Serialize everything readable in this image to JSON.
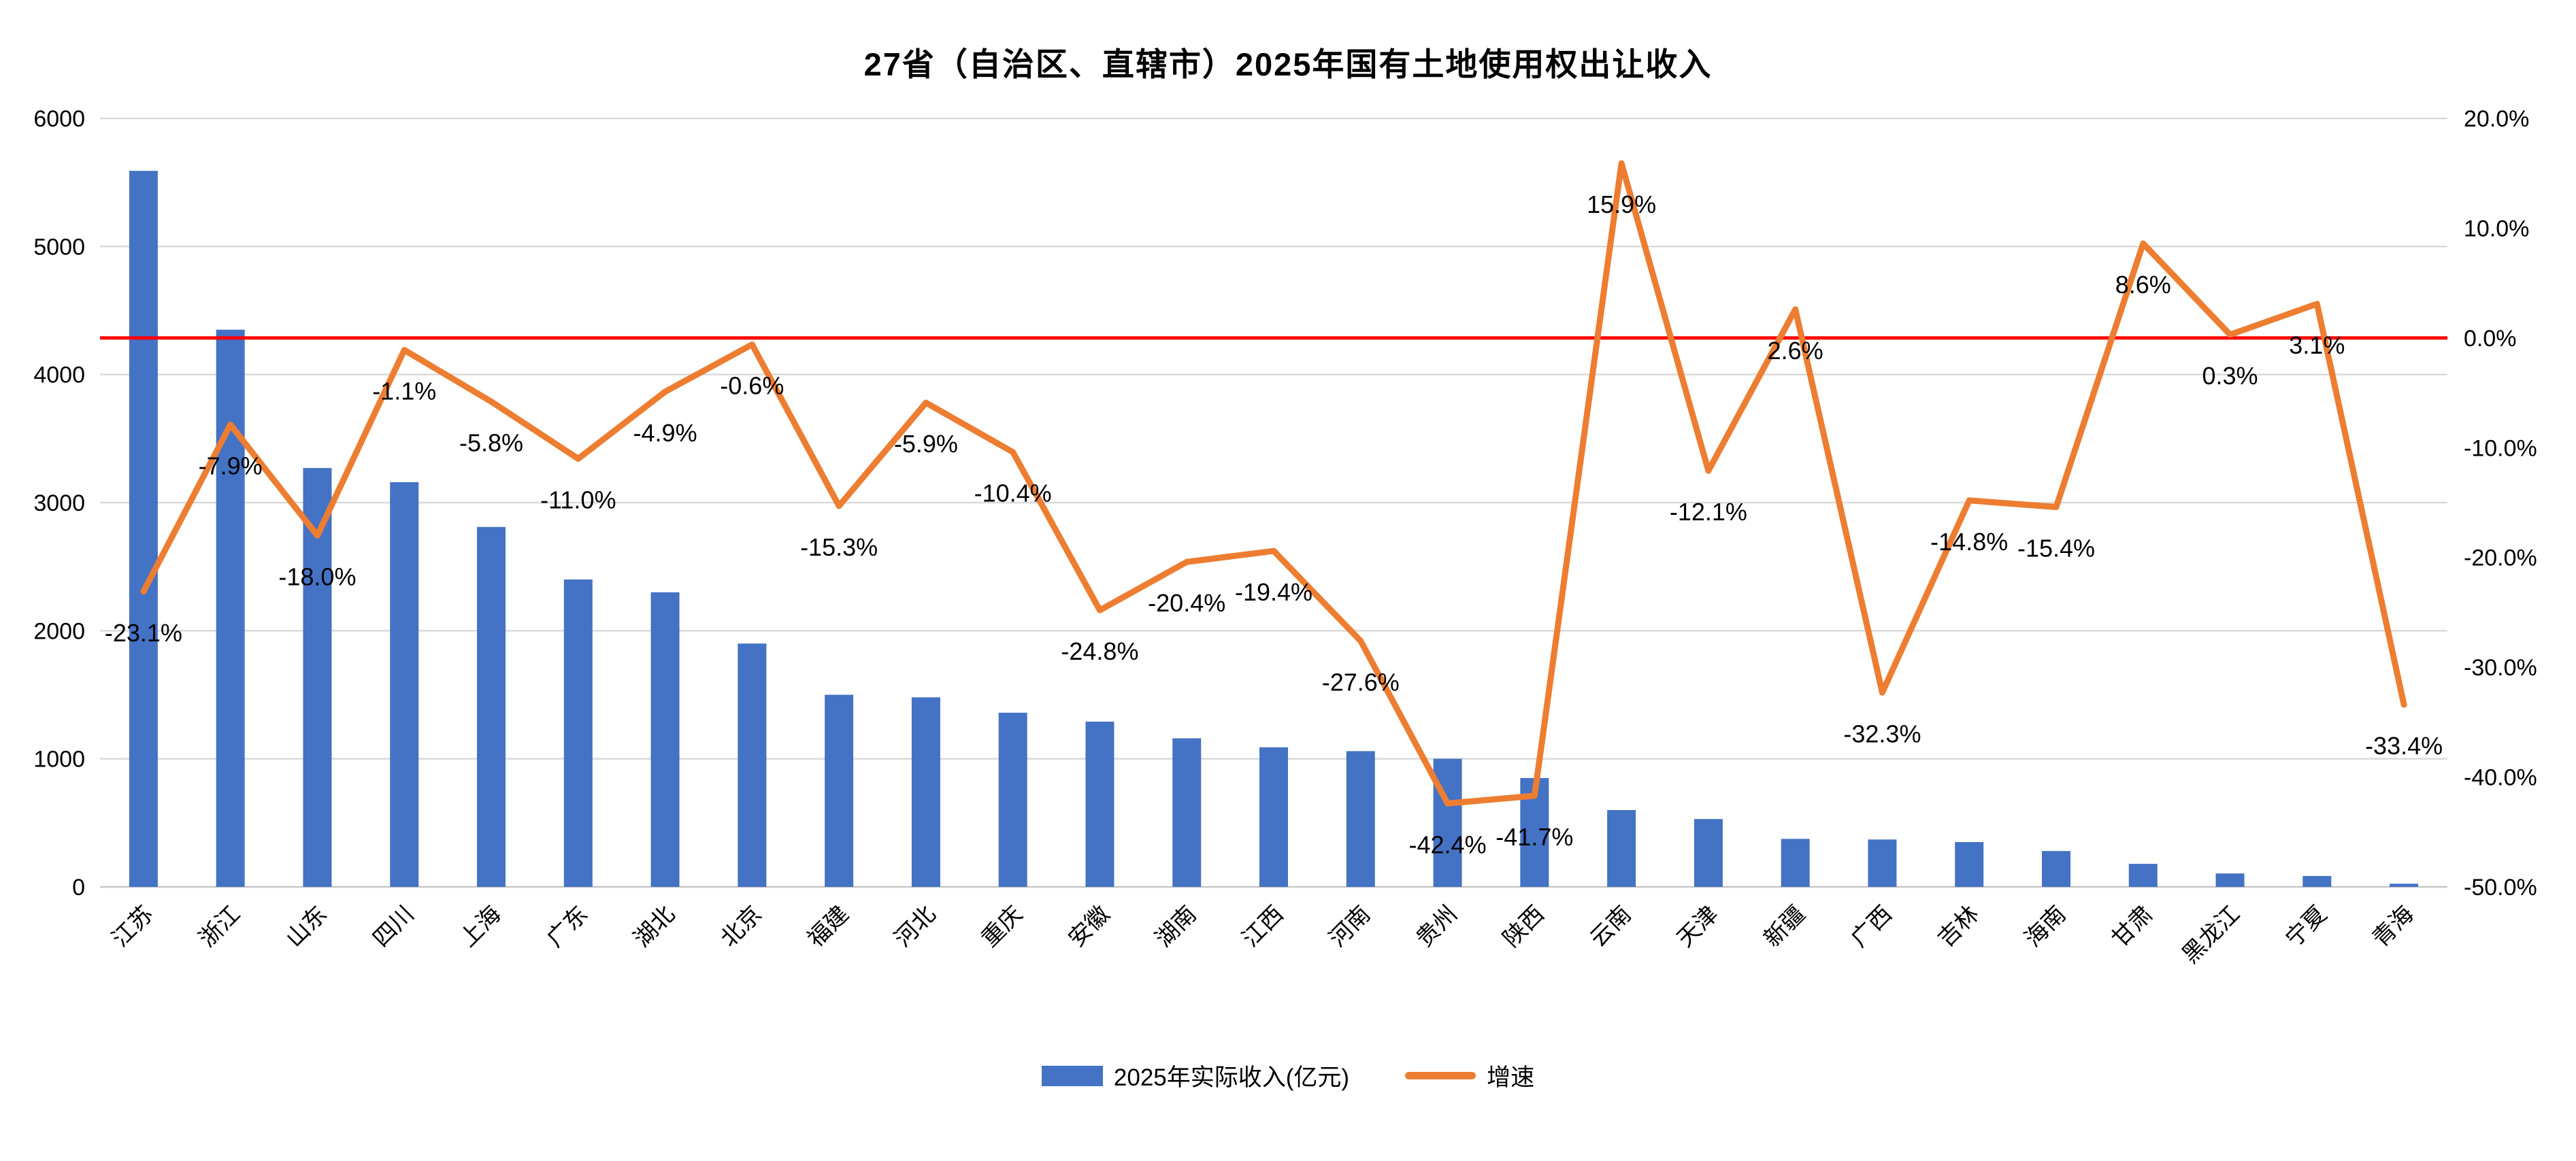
{
  "title": "27省（自治区、直辖市）2025年国有土地使用权出让收入",
  "legend": {
    "bar": "2025年实际收入(亿元)",
    "line": "增速"
  },
  "colors": {
    "bar": "#4472C4",
    "line": "#ED7D31",
    "zero_line": "#FF0000",
    "gridline": "#D9D9D9",
    "axis_line": "#C8C8C8",
    "text": "#000000"
  },
  "chart_data": {
    "type": "bar",
    "subtype": "combo-bar-line-dual-axis",
    "title": "27省（自治区、直辖市）2025年国有土地使用权出让收入",
    "categories": [
      "江苏",
      "浙江",
      "山东",
      "四川",
      "上海",
      "广东",
      "湖北",
      "北京",
      "福建",
      "河北",
      "重庆",
      "安徽",
      "湖南",
      "江西",
      "河南",
      "贵州",
      "陕西",
      "云南",
      "天津",
      "新疆",
      "广西",
      "吉林",
      "海南",
      "甘肃",
      "黑龙江",
      "宁夏",
      "青海"
    ],
    "series": [
      {
        "name": "2025年实际收入(亿元)",
        "type": "bar",
        "axis": "left",
        "values": [
          5590,
          4350,
          3270,
          3160,
          2810,
          2400,
          2300,
          1900,
          1500,
          1480,
          1360,
          1290,
          1160,
          1090,
          1060,
          1000,
          850,
          600,
          530,
          375,
          370,
          350,
          280,
          180,
          105,
          85,
          25
        ]
      },
      {
        "name": "增速",
        "type": "line",
        "axis": "right",
        "values": [
          -23.1,
          -7.9,
          -18.0,
          -1.1,
          -5.8,
          -11.0,
          -4.9,
          -0.6,
          -15.3,
          -5.9,
          -10.4,
          -24.8,
          -20.4,
          -19.4,
          -27.6,
          -42.4,
          -41.7,
          15.9,
          -12.1,
          2.6,
          -32.3,
          -14.8,
          -15.4,
          8.6,
          0.3,
          3.1,
          -33.4
        ],
        "labels": [
          "-23.1%",
          "-7.9%",
          "-18.0%",
          "-1.1%",
          "-5.8%",
          "-11.0%",
          "-4.9%",
          "-0.6%",
          "-15.3%",
          "-5.9%",
          "-10.4%",
          "-24.8%",
          "-20.4%",
          "-19.4%",
          "-27.6%",
          "-42.4%",
          "-41.7%",
          "15.9%",
          "-12.1%",
          "2.6%",
          "-32.3%",
          "-14.8%",
          "-15.4%",
          "8.6%",
          "0.3%",
          "3.1%",
          "-33.4%"
        ]
      }
    ],
    "left_axis": {
      "min": 0,
      "max": 6000,
      "step": 1000,
      "ticks": [
        "6000",
        "5000",
        "4000",
        "3000",
        "2000",
        "1000",
        "0"
      ]
    },
    "right_axis": {
      "min": -50,
      "max": 20,
      "step": 10,
      "ticks": [
        "20.0%",
        "10.0%",
        "0.0%",
        "-10.0%",
        "-20.0%",
        "-30.0%",
        "-40.0%",
        "-50.0%"
      ]
    },
    "zero_reference_line": true,
    "grid": true,
    "legend_position": "bottom",
    "xlabel": "",
    "ylabel_left": "",
    "ylabel_right": ""
  }
}
